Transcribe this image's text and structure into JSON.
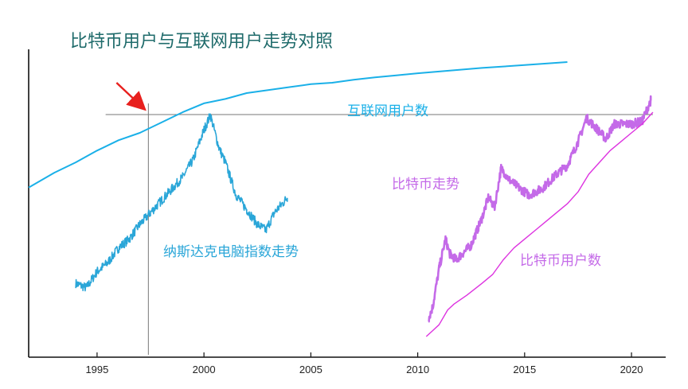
{
  "chart_data": {
    "type": "line",
    "title": "比特币用户与互联网用户走势对照",
    "xlabel": "",
    "ylabel": "",
    "xlim": [
      1991.8,
      2021.6
    ],
    "ylim": [
      0,
      100
    ],
    "x_ticks": [
      "1995",
      "2000",
      "2005",
      "2010",
      "2015",
      "2020"
    ],
    "y_axis_labeled": false,
    "grid": false,
    "legend": "none",
    "colors": {
      "internet": "#1ab0e8",
      "nasdaq": "#2aa6d8",
      "btc_price": "#c46ae8",
      "btc_users": "#dd33e0",
      "reference": "#777777",
      "arrow": "#e8201e"
    },
    "series": [
      {
        "name": "互联网用户数",
        "color": "#1ab0e8",
        "x": [
          1991.8,
          1993,
          1994,
          1995,
          1996,
          1997,
          1998,
          1999,
          2000,
          2001,
          2002,
          2003,
          2004,
          2005,
          2006,
          2007,
          2008,
          2009,
          2010,
          2011,
          2012,
          2013,
          2014,
          2015,
          2016,
          2017
        ],
        "y": [
          57.5,
          62.5,
          66,
          70,
          73.5,
          76,
          79.5,
          83,
          86,
          87.5,
          89.5,
          90.5,
          91.5,
          92.5,
          93,
          94,
          94.8,
          95.5,
          96.2,
          96.8,
          97.4,
          98,
          98.5,
          99,
          99.5,
          100
        ]
      },
      {
        "name": "纳斯达克电脑指数走势",
        "color": "#2aa6d8",
        "x": [
          1994.0,
          1994.5,
          1995.0,
          1995.5,
          1996.0,
          1996.5,
          1997.0,
          1997.5,
          1998.0,
          1998.5,
          1999.0,
          1999.5,
          2000.0,
          2000.3,
          2000.7,
          2001.0,
          2001.5,
          2002.0,
          2002.5,
          2002.9,
          2003.3,
          2003.9
        ],
        "y": [
          25,
          23.5,
          29,
          32,
          37,
          40,
          45,
          49,
          53,
          57,
          61,
          67,
          77,
          82,
          71,
          66,
          55,
          50,
          45,
          43,
          49,
          54
        ]
      },
      {
        "name": "比特币走势",
        "color": "#c46ae8",
        "x": [
          2010.5,
          2010.7,
          2011.0,
          2011.3,
          2011.5,
          2011.8,
          2012.5,
          2013.0,
          2013.3,
          2013.6,
          2013.9,
          2014.3,
          2014.8,
          2015.2,
          2015.8,
          2016.5,
          2017.0,
          2017.5,
          2017.9,
          2018.3,
          2018.8,
          2019.2,
          2019.5,
          2020.0,
          2020.5,
          2020.9
        ],
        "y": [
          13,
          17,
          30,
          40,
          35,
          33,
          38,
          47,
          54,
          51,
          64,
          60,
          57,
          55,
          57,
          62,
          65,
          73,
          81,
          78,
          74,
          79,
          79,
          79,
          80,
          87
        ]
      },
      {
        "name": "比特币用户数",
        "color": "#dd33e0",
        "x": [
          2010.4,
          2010.7,
          2011.0,
          2011.4,
          2011.7,
          2012.3,
          2013.0,
          2013.5,
          2014.0,
          2014.5,
          2015.0,
          2015.5,
          2016.0,
          2016.5,
          2017.0,
          2017.5,
          2018.0,
          2018.5,
          2019.0,
          2019.5,
          2020.0,
          2020.5,
          2021.0
        ],
        "y": [
          7,
          9,
          11,
          16,
          18,
          21,
          25,
          28,
          33,
          37,
          40,
          43,
          46,
          49,
          52,
          56,
          62,
          66,
          70,
          73,
          76,
          79,
          83
        ]
      }
    ],
    "annotations": {
      "internet_label": "互联网用户数",
      "nasdaq_label": "纳斯达克电脑指数走势",
      "btc_price_label": "比特币走势",
      "btc_users_label": "比特币用户数"
    },
    "reference_lines": {
      "horizontal_y": 82.2,
      "horizontal_x": [
        1995.4,
        2021.0
      ],
      "vertical_x": 1997.4,
      "vertical_y": [
        0,
        82.2
      ]
    }
  }
}
